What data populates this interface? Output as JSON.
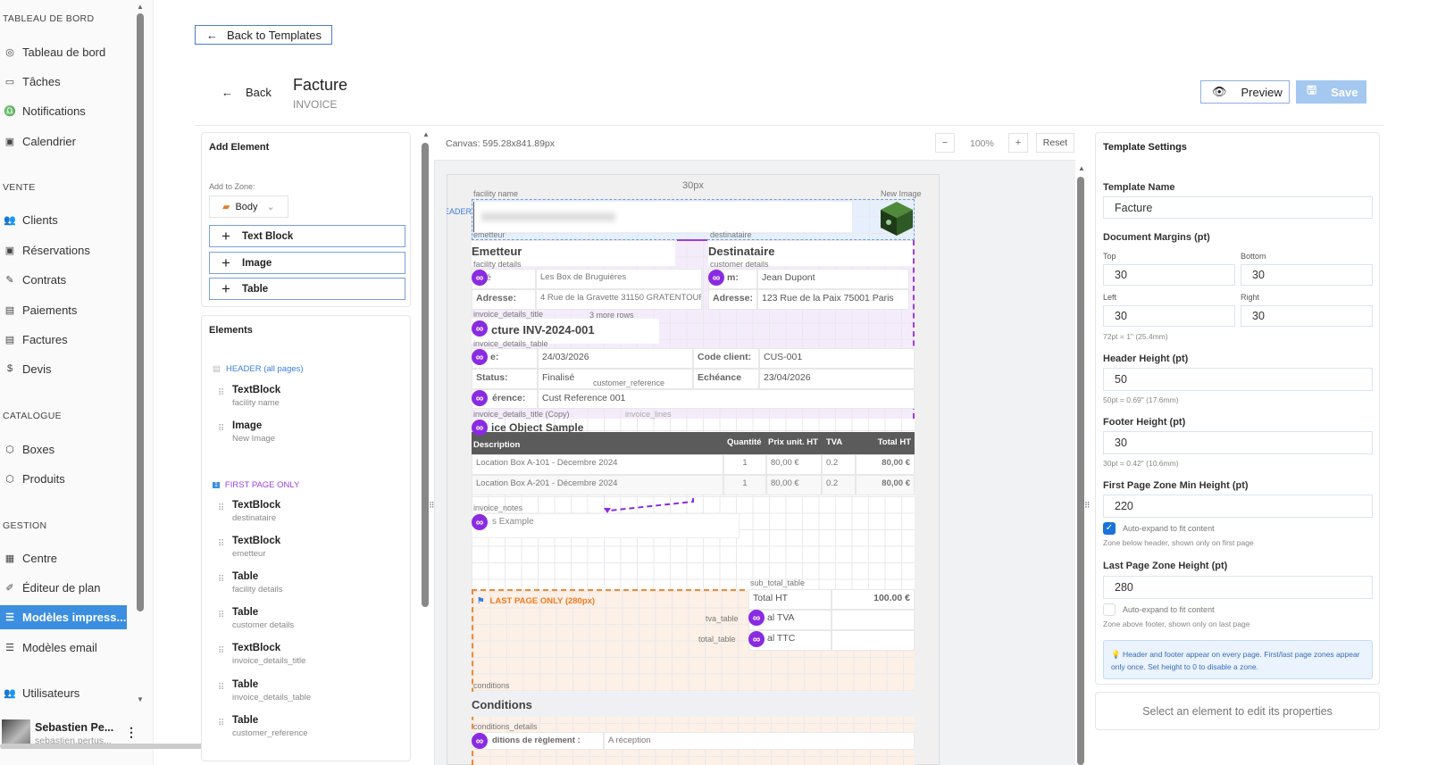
{
  "sidebar": {
    "sections": [
      {
        "title": "TABLEAU DE BORD",
        "items": [
          {
            "label": "Tableau de bord",
            "icon": "gauge-icon"
          },
          {
            "label": "Tâches",
            "icon": "sticky-note-icon"
          },
          {
            "label": "Notifications",
            "icon": "bell-icon"
          },
          {
            "label": "Calendrier",
            "icon": "calendar-icon"
          }
        ]
      },
      {
        "title": "VENTE",
        "items": [
          {
            "label": "Clients",
            "icon": "users-icon"
          },
          {
            "label": "Réservations",
            "icon": "calendar-icon"
          },
          {
            "label": "Contrats",
            "icon": "contract-icon"
          },
          {
            "label": "Paiements",
            "icon": "receipt-icon"
          },
          {
            "label": "Factures",
            "icon": "receipt-icon"
          },
          {
            "label": "Devis",
            "icon": "quote-icon"
          }
        ]
      },
      {
        "title": "CATALOGUE",
        "items": [
          {
            "label": "Boxes",
            "icon": "box-icon"
          },
          {
            "label": "Produits",
            "icon": "package-icon"
          }
        ]
      },
      {
        "title": "GESTION",
        "items": [
          {
            "label": "Centre",
            "icon": "building-icon"
          },
          {
            "label": "Éditeur de plan",
            "icon": "edit-icon"
          },
          {
            "label": "Modèles impress...",
            "icon": "template-icon",
            "active": true
          },
          {
            "label": "Modèles email",
            "icon": "template-icon"
          },
          {
            "label": "Utilisateurs",
            "icon": "users-icon"
          }
        ]
      }
    ],
    "user": {
      "name": "Sebastien Pe...",
      "email": "sebastien.pertus..."
    },
    "active_color": "#3b8ee0"
  },
  "top": {
    "back_to_templates": "Back to Templates",
    "back": "Back",
    "title": "Facture",
    "subtitle": "INVOICE",
    "preview": "Preview",
    "save": "Save"
  },
  "left": {
    "add_title": "Add Element",
    "zone_label": "Add to Zone:",
    "zone_value": "Body",
    "add_buttons": [
      "Text Block",
      "Image",
      "Table"
    ],
    "elements_title": "Elements",
    "header_zone": "HEADER (all pages)",
    "header_items": [
      {
        "type": "TextBlock",
        "name": "facility name"
      },
      {
        "type": "Image",
        "name": "New Image"
      }
    ],
    "first_zone": "FIRST PAGE ONLY",
    "first_items": [
      {
        "type": "TextBlock",
        "name": "destinataire"
      },
      {
        "type": "TextBlock",
        "name": "emetteur"
      },
      {
        "type": "Table",
        "name": "facility details"
      },
      {
        "type": "Table",
        "name": "customer details"
      },
      {
        "type": "TextBlock",
        "name": "invoice_details_title"
      },
      {
        "type": "Table",
        "name": "invoice_details_table"
      },
      {
        "type": "Table",
        "name": "customer_reference"
      }
    ]
  },
  "canvas": {
    "size": "Canvas: 595.28x841.89px",
    "zoom": "100%",
    "zoom_out": "−",
    "zoom_in": "+",
    "reset": "Reset",
    "margin_label": "30px",
    "header_tag": "HEADER",
    "labels": {
      "facility_name": "facility name",
      "new_image": "New Image",
      "emetteur": "emetteur",
      "destinataire": "destinataire",
      "facility_details": "facility details",
      "customer_details": "customer details",
      "invoice_details_title": "invoice_details_title",
      "more_rows": "3 more rows",
      "invoice_details_table": "invoice_details_table",
      "customer_reference": "customer_reference",
      "title_copy": "invoice_details_title (Copy)",
      "invoice_lines": "invoice_lines",
      "invoice_notes": "invoice_notes",
      "sub_total_table": "sub_total_table",
      "tva_table": "tva_table",
      "total_table": "total_table",
      "conditions": "conditions",
      "conditions_details": "conditions_details"
    },
    "emetteur_heading": "Emetteur",
    "destinataire_heading": "Destinataire",
    "facility_rows": [
      [
        "iété",
        "Les Box de Bruguières"
      ],
      [
        "Adresse:",
        "4 Rue de la Gravette  31150 GRATENTOUR"
      ]
    ],
    "customer_rows": [
      [
        "m:",
        "Jean Dupont"
      ],
      [
        "Adresse:",
        "123 Rue de la Paix 75001 Paris"
      ]
    ],
    "invoice_title": "cture INV-2024-001",
    "details_rows": [
      [
        "e:",
        "24/03/2026",
        "Code client:",
        "CUS-001"
      ],
      [
        "Status:",
        "Finalisé",
        "Echéance",
        "23/04/2026"
      ]
    ],
    "reference_row": [
      "érence:",
      "Cust Reference 001"
    ],
    "sample_title": "ice Object Sample",
    "lines_headers": [
      "Description",
      "Quantité",
      "Prix unit. HT",
      "TVA",
      "Total HT"
    ],
    "lines_rows": [
      [
        "Location Box A-101 - Décembre 2024",
        "1",
        "80,00 €",
        "0.2",
        "80,00 €"
      ],
      [
        "Location Box A-201 - Décembre 2024",
        "1",
        "80,00 €",
        "0.2",
        "80,00 €"
      ]
    ],
    "notes": "s Example",
    "last_zone": "LAST PAGE ONLY (280px)",
    "totals": [
      [
        "Total   HT",
        "100.00 €"
      ],
      [
        "al TVA",
        ""
      ],
      [
        "al TTC",
        ""
      ]
    ],
    "conditions_heading": "Conditions",
    "conditions_row": [
      "ditions de règlement :",
      "A réception"
    ]
  },
  "settings": {
    "title": "Template Settings",
    "name_label": "Template Name",
    "name_value": "Facture",
    "margins_label": "Document Margins (pt)",
    "top_label": "Top",
    "top": "30",
    "bottom_label": "Bottom",
    "bottom": "30",
    "left_label": "Left",
    "left": "30",
    "right_label": "Right",
    "right": "30",
    "margin_hint": "72pt = 1\" (25.4mm)",
    "header_label": "Header Height (pt)",
    "header": "50",
    "header_hint": "50pt = 0.69\" (17.6mm)",
    "footer_label": "Footer Height (pt)",
    "footer": "30",
    "footer_hint": "30pt = 0.42\" (10.6mm)",
    "first_label": "First Page Zone Min Height (pt)",
    "first": "220",
    "first_auto": "Auto-expand to fit content",
    "first_auto_checked": true,
    "first_hint": "Zone below header, shown only on first page",
    "last_label": "Last Page Zone Height (pt)",
    "last": "280",
    "last_auto": "Auto-expand to fit content",
    "last_auto_checked": false,
    "last_hint": "Zone above footer, shown only on last page",
    "info": "Header and footer appear on every page. First/last page zones appear only once. Set height to 0 to disable a zone.",
    "select_prompt": "Select an element to edit its properties"
  }
}
